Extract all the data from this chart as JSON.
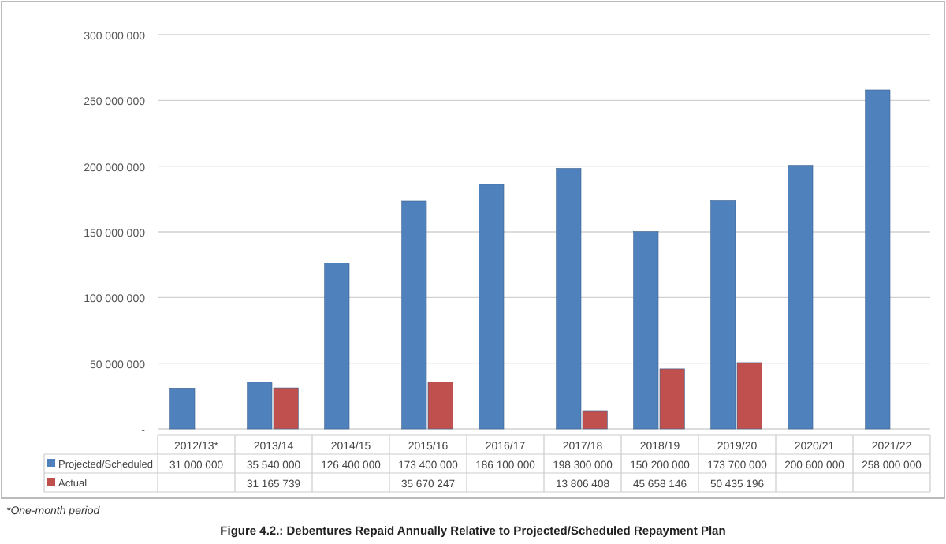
{
  "chart_data": {
    "type": "bar",
    "title": "Figure 4.2.: Debentures Repaid Annually Relative to Projected/Scheduled Repayment Plan",
    "categories": [
      "2012/13*",
      "2013/14",
      "2014/15",
      "2015/16",
      "2016/17",
      "2017/18",
      "2018/19",
      "2019/20",
      "2020/21",
      "2021/22"
    ],
    "series": [
      {
        "name": "Projected/Scheduled",
        "color": "#4f81bd",
        "values": [
          31000000,
          35540000,
          126400000,
          173400000,
          186100000,
          198300000,
          150200000,
          173700000,
          200600000,
          258000000
        ],
        "value_labels": [
          "31 000 000",
          "35 540 000",
          "126 400 000",
          "173 400 000",
          "186 100 000",
          "198 300 000",
          "150 200 000",
          "173 700 000",
          "200 600 000",
          "258 000 000"
        ]
      },
      {
        "name": "Actual",
        "color": "#c0504d",
        "values": [
          null,
          31165739,
          null,
          35670247,
          null,
          13806408,
          45658146,
          50435196,
          null,
          null
        ],
        "value_labels": [
          null,
          "31 165 739",
          null,
          "35 670 247",
          null,
          "13 806 408",
          "45 658 146",
          "50 435 196",
          null,
          null
        ]
      }
    ],
    "ylim": [
      0,
      300000000
    ],
    "yticks": [
      {
        "value": 0,
        "label": "-"
      },
      {
        "value": 50000000,
        "label": "50 000 000"
      },
      {
        "value": 100000000,
        "label": "100 000 000"
      },
      {
        "value": 150000000,
        "label": "150 000 000"
      },
      {
        "value": 200000000,
        "label": "200 000 000"
      },
      {
        "value": 250000000,
        "label": "250 000 000"
      },
      {
        "value": 300000000,
        "label": "300 000 000"
      }
    ],
    "grid": "y",
    "legend": "bottom",
    "annotations": [
      "*One-month period"
    ]
  }
}
